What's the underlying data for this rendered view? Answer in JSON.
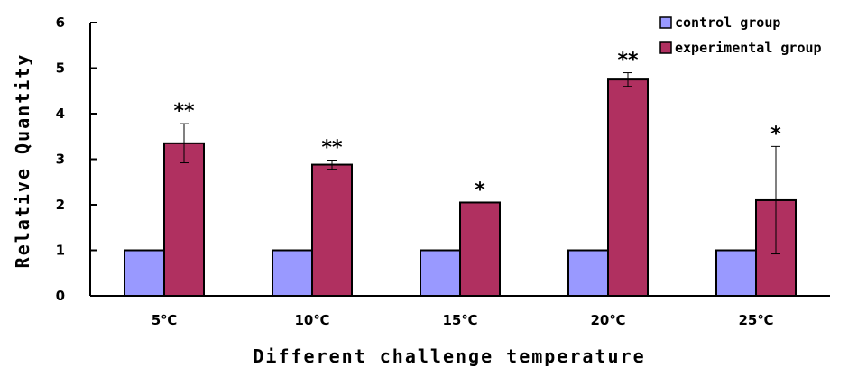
{
  "chart_data": {
    "type": "bar",
    "categories": [
      "5℃",
      "10℃",
      "15℃",
      "20℃",
      "25℃"
    ],
    "series": [
      {
        "name": "control group",
        "color": "#9999ff",
        "values": [
          1,
          1,
          1,
          1,
          1
        ]
      },
      {
        "name": "experimental group",
        "color": "#b03060",
        "values": [
          3.35,
          2.88,
          2.05,
          4.75,
          2.1
        ],
        "error": [
          0.43,
          0.1,
          0,
          0.15,
          1.18
        ]
      }
    ],
    "significance": [
      "**",
      "**",
      "*",
      "**",
      "*"
    ],
    "xlabel": "Different challenge temperature",
    "ylabel": "Relative Quantity",
    "ylim": [
      0,
      6
    ],
    "yticks": [
      0,
      1,
      2,
      3,
      4,
      5,
      6
    ],
    "grid": false,
    "legend_position": "top-right"
  }
}
